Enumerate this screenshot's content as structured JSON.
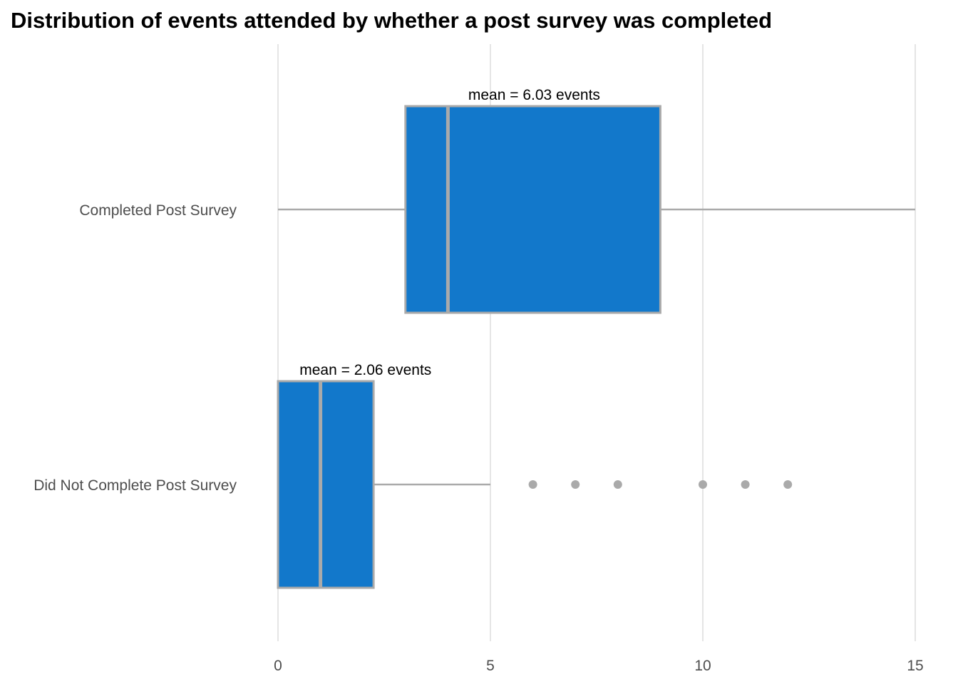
{
  "chart_data": {
    "type": "boxplot",
    "orientation": "horizontal",
    "title": "Distribution of events attended by whether a post survey was completed",
    "xlabel": "",
    "ylabel": "",
    "xlim": [
      0,
      15
    ],
    "x_ticks": [
      0,
      5,
      10,
      15
    ],
    "x_tick_labels": [
      "0",
      "5",
      "10",
      "15"
    ],
    "grid": {
      "vertical_major": true,
      "horizontal": false
    },
    "legend": "none",
    "colors": {
      "box_fill": "#1278CB",
      "box_outline": "#AAAAAA",
      "median_line": "#AAAAAA",
      "whisker": "#AAAAAA",
      "outlier": "#AAAAAA",
      "grid": "#E5E5E5",
      "axis_text": "#4D4D4D",
      "title": "#000000",
      "annotation": "#000000"
    },
    "groups": [
      {
        "label": "Completed Post Survey",
        "whisker_low": 0,
        "q1": 3,
        "median": 4,
        "q3": 9,
        "whisker_high": 15,
        "outliers": [],
        "mean": 6.03,
        "mean_label": "mean = 6.03 events"
      },
      {
        "label": "Did Not Complete Post Survey",
        "whisker_low": 0,
        "q1": 0,
        "median": 1,
        "q3": 2.25,
        "whisker_high": 5,
        "outliers": [
          6,
          7,
          8,
          10,
          11,
          12
        ],
        "mean": 2.06,
        "mean_label": "mean = 2.06 events"
      }
    ]
  }
}
